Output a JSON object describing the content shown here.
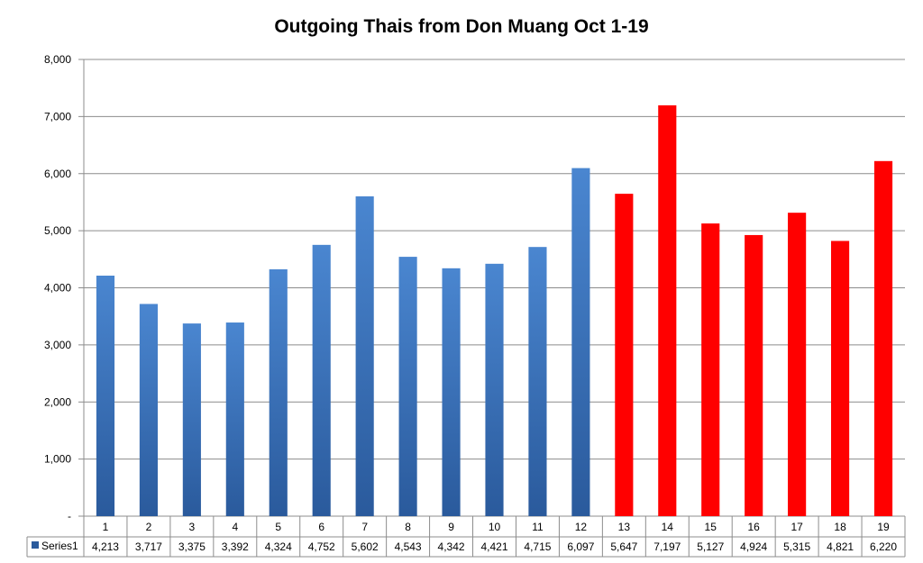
{
  "chart_data": {
    "type": "bar",
    "title": "Outgoing Thais from Don Muang Oct 1-19",
    "xlabel": "",
    "ylabel": "",
    "categories": [
      "1",
      "2",
      "3",
      "4",
      "5",
      "6",
      "7",
      "8",
      "9",
      "10",
      "11",
      "12",
      "13",
      "14",
      "15",
      "16",
      "17",
      "18",
      "19"
    ],
    "series": [
      {
        "name": "Series1",
        "values": [
          4213,
          3717,
          3375,
          3392,
          4324,
          4752,
          5602,
          4543,
          4342,
          4421,
          4715,
          6097,
          5647,
          7197,
          5127,
          4924,
          5315,
          4821,
          6220
        ],
        "value_labels": [
          "4,213",
          "3,717",
          "3,375",
          "3,392",
          "4,324",
          "4,752",
          "5,602",
          "4,543",
          "4,342",
          "4,421",
          "4,715",
          "6,097",
          "5,647",
          "7,197",
          "5,127",
          "4,924",
          "5,315",
          "4,821",
          "6,220"
        ]
      }
    ],
    "ylim": [
      0,
      8000
    ],
    "y_ticks": [
      {
        "value": 0,
        "label": "-"
      },
      {
        "value": 1000,
        "label": "1,000"
      },
      {
        "value": 2000,
        "label": "2,000"
      },
      {
        "value": 3000,
        "label": "3,000"
      },
      {
        "value": 4000,
        "label": "4,000"
      },
      {
        "value": 5000,
        "label": "5,000"
      },
      {
        "value": 6000,
        "label": "6,000"
      },
      {
        "value": 7000,
        "label": "7,000"
      },
      {
        "value": 8000,
        "label": "8,000"
      }
    ],
    "grid": true,
    "legend": "data-table",
    "colors": {
      "blue_top": "#4a86d0",
      "blue_bottom": "#2a5a9c",
      "red": "#ff0000",
      "grid": "#8c8c8c"
    },
    "highlight_from_index": 12
  }
}
